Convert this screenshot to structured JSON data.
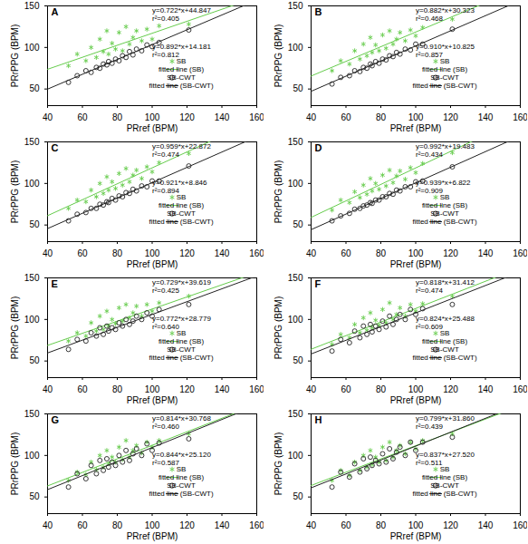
{
  "chart_data": [
    {
      "type": "scatter",
      "title": "A",
      "x_label": "PRref (BPM)",
      "y_label": "PRrPPG (BPM)",
      "x": [
        52,
        57,
        62,
        65,
        68,
        70,
        72,
        74,
        75,
        77,
        79,
        81,
        83,
        85,
        87,
        89,
        91,
        94,
        97,
        100,
        104,
        121
      ],
      "xlim": [
        40,
        160
      ],
      "xticks": [
        40,
        60,
        80,
        100,
        120,
        140,
        160
      ],
      "ylim": [
        30,
        150
      ],
      "yticks": [
        50,
        100,
        150
      ],
      "series": [
        {
          "name": "SB",
          "color": "#66cc4d",
          "marker": "asterisk",
          "values": [
            78,
            92,
            84,
            100,
            88,
            110,
            95,
            120,
            92,
            105,
            98,
            118,
            96,
            125,
            104,
            112,
            120,
            108,
            122,
            110,
            126,
            128
          ],
          "fit": {
            "name": "fitted line (SB)",
            "slope": 0.722,
            "intercept": 44.847,
            "labels": [
              "y=0.722*x+44.847",
              "r²=0.405"
            ]
          }
        },
        {
          "name": "SB-CWT",
          "color": "#222222",
          "marker": "circle",
          "values": [
            58,
            66,
            72,
            70,
            76,
            75,
            80,
            79,
            83,
            81,
            86,
            84,
            90,
            88,
            95,
            91,
            98,
            96,
            103,
            101,
            106,
            121
          ],
          "fit": {
            "name": "fitted line (SB-CWT)",
            "slope": 0.892,
            "intercept": 14.181,
            "labels": [
              "y=0.892*x+14.181",
              "r²=0.812"
            ]
          }
        }
      ]
    },
    {
      "type": "scatter",
      "title": "B",
      "x_label": "PRref (BPM)",
      "y_label": "PRrPPG (BPM)",
      "x": [
        52,
        57,
        62,
        65,
        68,
        70,
        72,
        74,
        75,
        77,
        79,
        81,
        83,
        85,
        87,
        89,
        91,
        94,
        97,
        100,
        104,
        121
      ],
      "xlim": [
        40,
        160
      ],
      "xticks": [
        40,
        60,
        80,
        100,
        120,
        140,
        160
      ],
      "ylim": [
        30,
        150
      ],
      "yticks": [
        50,
        100,
        150
      ],
      "series": [
        {
          "name": "SB",
          "color": "#66cc4d",
          "marker": "asterisk",
          "values": [
            72,
            84,
            80,
            96,
            86,
            104,
            90,
            112,
            94,
            103,
            96,
            115,
            99,
            120,
            104,
            110,
            118,
            108,
            121,
            114,
            124,
            134
          ],
          "fit": {
            "name": "fitted line (SB)",
            "slope": 0.882,
            "intercept": 30.323,
            "labels": [
              "y=0.882*x+30.323",
              "r²=0.468"
            ]
          }
        },
        {
          "name": "SB-CWT",
          "color": "#222222",
          "marker": "circle",
          "values": [
            56,
            64,
            66,
            72,
            71,
            76,
            75,
            80,
            78,
            83,
            81,
            86,
            85,
            90,
            89,
            94,
            92,
            98,
            97,
            104,
            104,
            122
          ],
          "fit": {
            "name": "fitted line (SB-CWT)",
            "slope": 0.91,
            "intercept": 10.825,
            "labels": [
              "y=0.910*x+10.825",
              "r²=0.857"
            ]
          }
        }
      ]
    },
    {
      "type": "scatter",
      "title": "C",
      "x_label": "PRref (BPM)",
      "y_label": "PRrPPG (BPM)",
      "x": [
        52,
        57,
        62,
        65,
        68,
        70,
        72,
        74,
        75,
        77,
        79,
        81,
        83,
        85,
        87,
        89,
        91,
        94,
        97,
        100,
        104,
        121
      ],
      "xlim": [
        40,
        160
      ],
      "xticks": [
        40,
        60,
        80,
        100,
        120,
        140,
        160
      ],
      "ylim": [
        30,
        150
      ],
      "yticks": [
        50,
        100,
        150
      ],
      "series": [
        {
          "name": "SB",
          "color": "#66cc4d",
          "marker": "asterisk",
          "values": [
            70,
            80,
            78,
            92,
            84,
            100,
            88,
            108,
            92,
            102,
            94,
            112,
            98,
            118,
            102,
            110,
            116,
            106,
            120,
            114,
            125,
            136
          ],
          "fit": {
            "name": "fitted line (SB)",
            "slope": 0.959,
            "intercept": 22.872,
            "labels": [
              "y=0.959*x+22.872",
              "r²=0.474"
            ]
          }
        },
        {
          "name": "SB-CWT",
          "color": "#222222",
          "marker": "circle",
          "values": [
            55,
            63,
            65,
            70,
            70,
            75,
            74,
            78,
            77,
            82,
            80,
            85,
            84,
            89,
            88,
            93,
            91,
            97,
            96,
            103,
            103,
            121
          ],
          "fit": {
            "name": "fitted line (SB-CWT)",
            "slope": 0.921,
            "intercept": 8.846,
            "labels": [
              "y=0.921*x+8.846",
              "r²=0.894"
            ]
          }
        }
      ]
    },
    {
      "type": "scatter",
      "title": "D",
      "x_label": "PRref (BPM)",
      "y_label": "PRrPPG (BPM)",
      "x": [
        52,
        57,
        62,
        65,
        68,
        70,
        72,
        74,
        75,
        77,
        79,
        81,
        83,
        85,
        87,
        89,
        91,
        94,
        97,
        100,
        104,
        121
      ],
      "xlim": [
        40,
        160
      ],
      "xticks": [
        40,
        60,
        80,
        100,
        120,
        140,
        160
      ],
      "ylim": [
        30,
        150
      ],
      "yticks": [
        50,
        100,
        150
      ],
      "series": [
        {
          "name": "SB",
          "color": "#66cc4d",
          "marker": "asterisk",
          "values": [
            68,
            80,
            77,
            90,
            83,
            98,
            87,
            106,
            91,
            100,
            93,
            110,
            97,
            116,
            101,
            109,
            115,
            105,
            119,
            113,
            124,
            137
          ],
          "fit": {
            "name": "fitted line (SB)",
            "slope": 0.992,
            "intercept": 19.483,
            "labels": [
              "y=0.992*x+19.483",
              "r²=0.434"
            ]
          }
        },
        {
          "name": "SB-CWT",
          "color": "#222222",
          "marker": "circle",
          "values": [
            55,
            61,
            64,
            69,
            70,
            73,
            74,
            77,
            76,
            80,
            80,
            84,
            84,
            88,
            87,
            92,
            91,
            96,
            96,
            102,
            103,
            120
          ],
          "fit": {
            "name": "fitted line (SB-CWT)",
            "slope": 0.939,
            "intercept": 6.822,
            "labels": [
              "y=0.939*x+6.822",
              "r²=0.909"
            ]
          }
        }
      ]
    },
    {
      "type": "scatter",
      "title": "E",
      "x_label": "PRref (BPM)",
      "y_label": "PRrPPG (BPM)",
      "x": [
        52,
        57,
        62,
        65,
        68,
        70,
        72,
        74,
        75,
        77,
        79,
        81,
        83,
        85,
        87,
        89,
        91,
        94,
        97,
        100,
        104,
        121
      ],
      "xlim": [
        40,
        160
      ],
      "xticks": [
        40,
        60,
        80,
        100,
        120,
        140,
        160
      ],
      "ylim": [
        30,
        150
      ],
      "yticks": [
        50,
        100,
        150
      ],
      "series": [
        {
          "name": "SB",
          "color": "#66cc4d",
          "marker": "asterisk",
          "values": [
            74,
            84,
            80,
            96,
            86,
            104,
            88,
            110,
            92,
            100,
            95,
            114,
            98,
            118,
            102,
            108,
            116,
            104,
            118,
            110,
            120,
            128
          ],
          "fit": {
            "name": "fitted line (SB)",
            "slope": 0.729,
            "intercept": 39.619,
            "labels": [
              "y=0.729*x+39.619",
              "r²=0.425"
            ]
          }
        },
        {
          "name": "SB-CWT",
          "color": "#222222",
          "marker": "circle",
          "values": [
            64,
            76,
            74,
            84,
            80,
            90,
            82,
            92,
            86,
            90,
            88,
            96,
            92,
            100,
            94,
            98,
            104,
            100,
            108,
            104,
            112,
            118
          ],
          "fit": {
            "name": "fitted line (SB-CWT)",
            "slope": 0.772,
            "intercept": 28.779,
            "labels": [
              "y=0.772*x+28.779",
              "r²=0.640"
            ]
          }
        }
      ]
    },
    {
      "type": "scatter",
      "title": "F",
      "x_label": "PRref (BPM)",
      "y_label": "PRrPPG (BPM)",
      "x": [
        52,
        57,
        62,
        65,
        68,
        70,
        72,
        74,
        75,
        77,
        79,
        81,
        83,
        85,
        87,
        89,
        91,
        94,
        97,
        100,
        104,
        121
      ],
      "xlim": [
        40,
        160
      ],
      "xticks": [
        40,
        60,
        80,
        100,
        120,
        140,
        160
      ],
      "ylim": [
        30,
        150
      ],
      "yticks": [
        50,
        100,
        150
      ],
      "series": [
        {
          "name": "SB",
          "color": "#66cc4d",
          "marker": "asterisk",
          "values": [
            70,
            82,
            78,
            94,
            84,
            102,
            87,
            108,
            90,
            99,
            93,
            112,
            96,
            120,
            100,
            106,
            114,
            104,
            118,
            110,
            119,
            128
          ],
          "fit": {
            "name": "fitted line (SB)",
            "slope": 0.818,
            "intercept": 31.412,
            "labels": [
              "y=0.818*x+31.412",
              "r²=0.474"
            ]
          }
        },
        {
          "name": "SB-CWT",
          "color": "#222222",
          "marker": "circle",
          "values": [
            62,
            76,
            72,
            86,
            78,
            92,
            82,
            94,
            85,
            92,
            88,
            98,
            91,
            104,
            94,
            100,
            106,
            100,
            112,
            106,
            113,
            118
          ],
          "fit": {
            "name": "fitted line (SB-CWT)",
            "slope": 0.824,
            "intercept": 25.488,
            "labels": [
              "y=0.824*x+25.488",
              "r²=0.609"
            ]
          }
        }
      ]
    },
    {
      "type": "scatter",
      "title": "G",
      "x_label": "PRref (BPM)",
      "y_label": "PRrPPG (BPM)",
      "x": [
        52,
        57,
        62,
        65,
        68,
        70,
        72,
        74,
        75,
        77,
        79,
        81,
        83,
        85,
        87,
        89,
        91,
        94,
        97,
        100,
        104,
        121
      ],
      "xlim": [
        40,
        160
      ],
      "xticks": [
        40,
        60,
        80,
        100,
        120,
        140,
        160
      ],
      "ylim": [
        30,
        150
      ],
      "yticks": [
        50,
        100,
        150
      ],
      "series": [
        {
          "name": "SB",
          "color": "#66cc4d",
          "marker": "asterisk",
          "values": [
            70,
            80,
            77,
            92,
            83,
            100,
            86,
            106,
            90,
            98,
            92,
            110,
            95,
            118,
            98,
            106,
            112,
            103,
            116,
            110,
            118,
            126
          ],
          "fit": {
            "name": "fitted line (SB)",
            "slope": 0.814,
            "intercept": 30.768,
            "labels": [
              "y=0.814*x+30.768",
              "r²=0.460"
            ]
          }
        },
        {
          "name": "SB-CWT",
          "color": "#222222",
          "marker": "circle",
          "values": [
            62,
            78,
            72,
            88,
            78,
            94,
            82,
            96,
            86,
            92,
            88,
            100,
            92,
            106,
            94,
            102,
            108,
            100,
            114,
            106,
            115,
            120
          ],
          "fit": {
            "name": "fitted line (SB-CWT)",
            "slope": 0.844,
            "intercept": 25.12,
            "labels": [
              "y=0.844*x+25.120",
              "r²=0.587"
            ]
          }
        }
      ]
    },
    {
      "type": "scatter",
      "title": "H",
      "x_label": "PRref (BPM)",
      "y_label": "PRrPPG (BPM)",
      "x": [
        52,
        57,
        62,
        65,
        68,
        70,
        72,
        74,
        75,
        77,
        79,
        81,
        83,
        85,
        87,
        89,
        91,
        94,
        97,
        100,
        104,
        121
      ],
      "xlim": [
        40,
        160
      ],
      "xticks": [
        40,
        60,
        80,
        100,
        120,
        140,
        160
      ],
      "ylim": [
        30,
        150
      ],
      "yticks": [
        50,
        100,
        150
      ],
      "series": [
        {
          "name": "SB",
          "color": "#66cc4d",
          "marker": "asterisk",
          "values": [
            70,
            82,
            76,
            92,
            82,
            100,
            86,
            106,
            89,
            98,
            92,
            110,
            94,
            116,
            98,
            106,
            112,
            102,
            116,
            108,
            118,
            126
          ],
          "fit": {
            "name": "fitted line (SB)",
            "slope": 0.799,
            "intercept": 31.86,
            "labels": [
              "y=0.799*x+31.860",
              "r²=0.439"
            ]
          }
        },
        {
          "name": "SB-CWT",
          "color": "#222222",
          "marker": "circle",
          "values": [
            62,
            80,
            74,
            90,
            80,
            96,
            84,
            98,
            88,
            94,
            90,
            102,
            92,
            108,
            96,
            104,
            110,
            100,
            116,
            106,
            116,
            122
          ],
          "fit": {
            "name": "fitted line (SB-CWT)",
            "slope": 0.837,
            "intercept": 27.52,
            "labels": [
              "y=0.837*x+27.520",
              "r²=0.511"
            ]
          }
        }
      ]
    }
  ]
}
